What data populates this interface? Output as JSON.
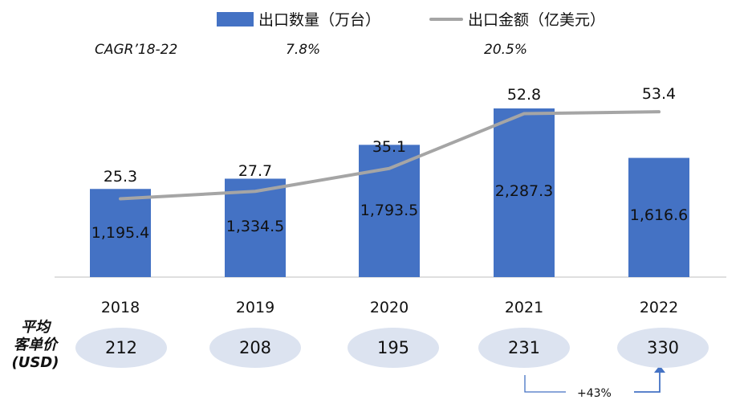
{
  "legend": {
    "bar_label": "出口数量（万台）",
    "line_label": "出口金额（亿美元）"
  },
  "cagr": {
    "label": "CAGR’18-22",
    "volume": "7.8%",
    "value": "20.5%"
  },
  "side_label": [
    "平均",
    "客单价",
    "(USD)"
  ],
  "growth_annotation": "+43%",
  "colors": {
    "bar": "#4472C4",
    "line": "#A5A5A5",
    "ellipse": "#DCE3F0",
    "arrow": "#4472C4",
    "axis": "#BFBFBF"
  },
  "chart_data": {
    "type": "bar",
    "categories": [
      "2018",
      "2019",
      "2020",
      "2021",
      "2022"
    ],
    "series": [
      {
        "name": "出口数量（万台）",
        "type": "bar",
        "values": [
          1195.4,
          1334.5,
          1793.5,
          2287.3,
          1616.6
        ],
        "labels": [
          "1,195.4",
          "1,334.5",
          "1,793.5",
          "2,287.3",
          "1,616.6"
        ]
      },
      {
        "name": "出口金额（亿美元）",
        "type": "line",
        "values": [
          25.3,
          27.7,
          35.1,
          52.8,
          53.4
        ],
        "labels": [
          "25.3",
          "27.7",
          "35.1",
          "52.8",
          "53.4"
        ]
      }
    ],
    "avg_unit_price_usd": [
      "212",
      "208",
      "195",
      "231",
      "330"
    ],
    "legend_position": "top",
    "grid": false
  }
}
